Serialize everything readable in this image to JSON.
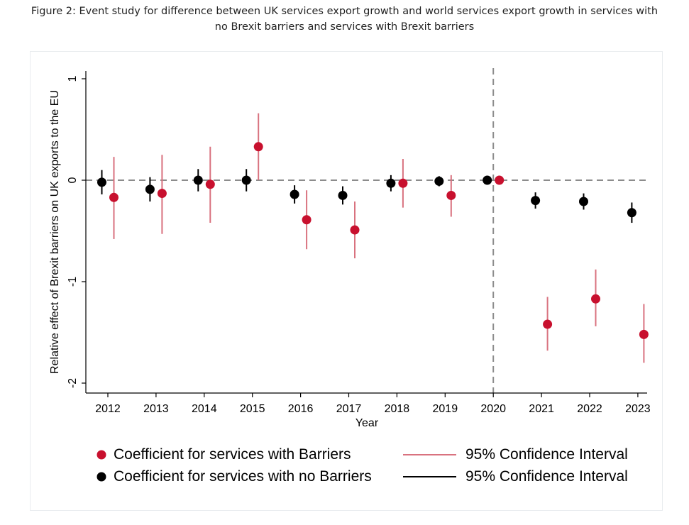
{
  "title_line1": "Figure 2: Event study for difference between UK services export growth and world services export growth in services with",
  "title_line2": "no Brexit barriers and services with Brexit barriers",
  "chart_data": {
    "type": "scatter",
    "xlabel": "Year",
    "ylabel": "Relative effect of Brexit barriers on UK exports to the EU",
    "categories": [
      "2012",
      "2013",
      "2014",
      "2015",
      "2016",
      "2017",
      "2018",
      "2019",
      "2020",
      "2021",
      "2022",
      "2023"
    ],
    "yticks": [
      1,
      0,
      -1,
      -2
    ],
    "ytick_labels": [
      "1",
      "0",
      "-1",
      "-2"
    ],
    "ylim": [
      -2.1,
      1.1
    ],
    "reference_line_y": 0,
    "reference_line_x": "2020",
    "series": [
      {
        "name": "Coefficient for services with no Barriers",
        "color": "#000000",
        "values": [
          -0.02,
          -0.09,
          0.0,
          0.0,
          -0.14,
          -0.15,
          -0.03,
          -0.01,
          0.0,
          -0.2,
          -0.21,
          -0.32
        ],
        "ci_low": [
          -0.14,
          -0.21,
          -0.11,
          -0.11,
          -0.23,
          -0.24,
          -0.11,
          -0.06,
          0.0,
          -0.28,
          -0.29,
          -0.42
        ],
        "ci_high": [
          0.1,
          0.03,
          0.11,
          0.11,
          -0.05,
          -0.06,
          0.05,
          0.04,
          0.0,
          -0.12,
          -0.13,
          -0.22
        ]
      },
      {
        "name": "Coefficient for services with Barriers",
        "color": "#c8102e",
        "values": [
          -0.17,
          -0.13,
          -0.04,
          0.33,
          -0.39,
          -0.49,
          -0.03,
          -0.15,
          0.0,
          -1.42,
          -1.17,
          -1.52
        ],
        "ci_low": [
          -0.58,
          -0.53,
          -0.42,
          0.0,
          -0.68,
          -0.77,
          -0.27,
          -0.36,
          0.0,
          -1.68,
          -1.44,
          -1.8
        ],
        "ci_high": [
          0.23,
          0.25,
          0.33,
          0.66,
          -0.1,
          -0.21,
          0.21,
          0.05,
          0.0,
          -1.15,
          -0.88,
          -1.22
        ]
      }
    ],
    "legend": [
      {
        "label": "Coefficient for services with Barriers",
        "color": "#c8102e"
      },
      {
        "label": "95% Confidence Interval",
        "color": "#d9727f"
      },
      {
        "label": "Coefficient for services with no Barriers",
        "color": "#000000"
      },
      {
        "label": "95% Confidence Interval",
        "color": "#000000"
      }
    ]
  }
}
